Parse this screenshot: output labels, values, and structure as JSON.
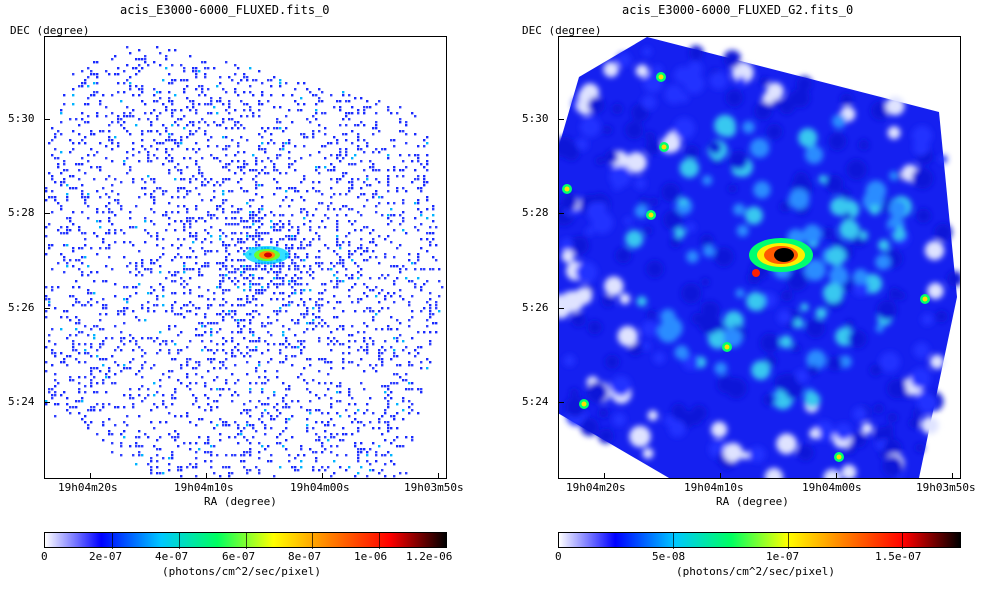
{
  "panels": [
    {
      "title": "acis_E3000-6000_FLUXED.fits_0",
      "dec_label": "DEC (degree)",
      "ra_label": "RA (degree)",
      "dec_ticks": [
        "5:30",
        "5:28",
        "5:26",
        "5:24"
      ],
      "ra_ticks": [
        "19h04m20s",
        "19h04m10s",
        "19h04m00s",
        "19h03m50s"
      ],
      "colorbar_ticks": [
        "0",
        "2e-07",
        "4e-07",
        "6e-07",
        "8e-07",
        "1e-06",
        "1.2e-06"
      ],
      "colorbar_unit": "(photons/cm^2/sec/pixel)",
      "style": "sparse"
    },
    {
      "title": "acis_E3000-6000_FLUXED_G2.fits_0",
      "dec_label": "DEC (degree)",
      "ra_label": "RA (degree)",
      "dec_ticks": [
        "5:30",
        "5:28",
        "5:26",
        "5:24"
      ],
      "ra_ticks": [
        "19h04m20s",
        "19h04m10s",
        "19h04m00s",
        "19h03m50s"
      ],
      "colorbar_ticks": [
        "0",
        "5e-08",
        "1e-07",
        "1.5e-07"
      ],
      "colorbar_unit": "(photons/cm^2/sec/pixel)",
      "style": "smooth"
    }
  ],
  "colormap": [
    "#ffffff",
    "#0000ff",
    "#00c8ff",
    "#00ff60",
    "#ffff00",
    "#ff8000",
    "#ff0000",
    "#000000"
  ]
}
